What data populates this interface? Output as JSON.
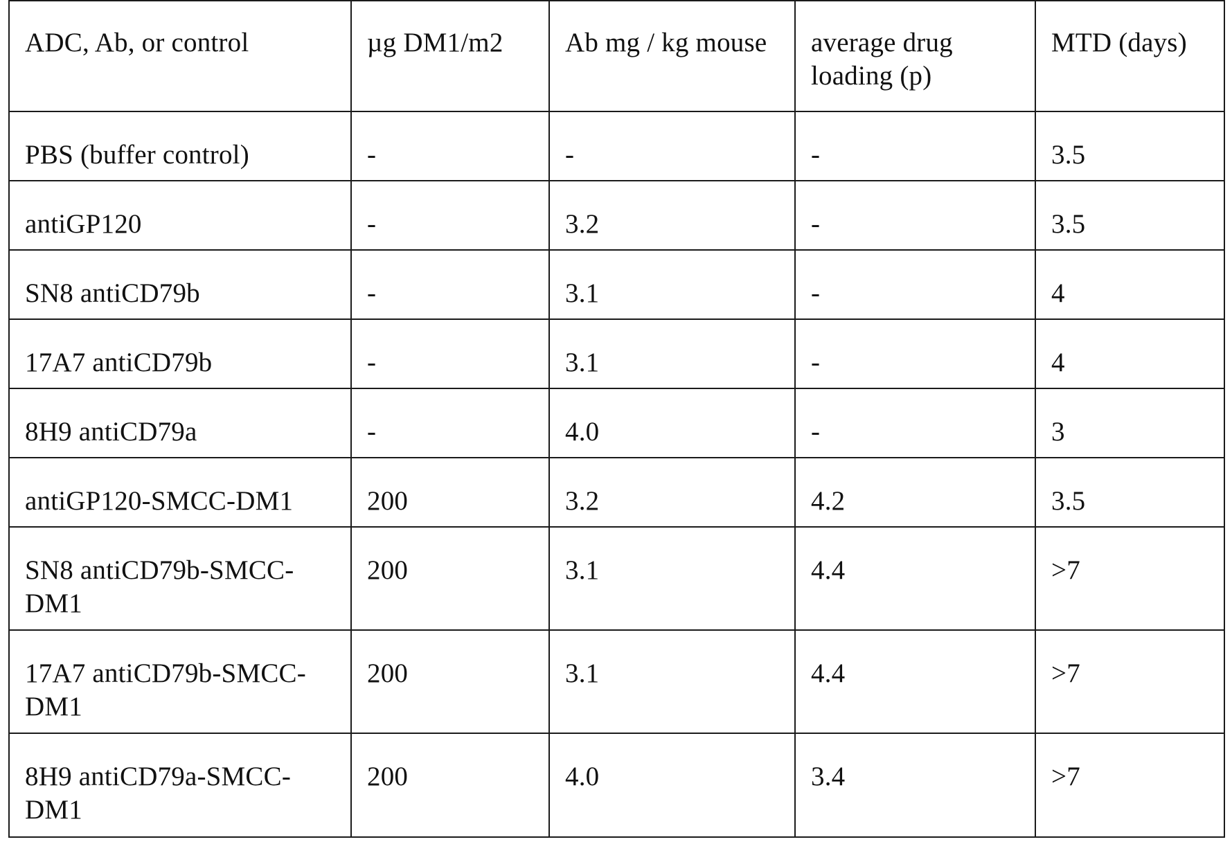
{
  "table": {
    "headers": [
      "ADC, Ab, or control",
      "µg DM1/m2",
      "Ab mg / kg mouse",
      "average drug loading (p)",
      "MTD (days)"
    ],
    "rows": [
      [
        "PBS (buffer control)",
        "-",
        "-",
        "-",
        "3.5"
      ],
      [
        "antiGP120",
        "-",
        "3.2",
        "-",
        "3.5"
      ],
      [
        "SN8 antiCD79b",
        "-",
        "3.1",
        "-",
        "4"
      ],
      [
        "17A7 antiCD79b",
        "-",
        "3.1",
        "-",
        "4"
      ],
      [
        "8H9 antiCD79a",
        "-",
        "4.0",
        "-",
        "3"
      ],
      [
        "antiGP120-SMCC-DM1",
        "200",
        "3.2",
        "4.2",
        "3.5"
      ],
      [
        "SN8 antiCD79b-SMCC-DM1",
        "200",
        "3.1",
        "4.4",
        ">7"
      ],
      [
        "17A7 antiCD79b-SMCC-DM1",
        "200",
        "3.1",
        "4.4",
        ">7"
      ],
      [
        "8H9 antiCD79a-SMCC-DM1",
        "200",
        "4.0",
        "3.4",
        ">7"
      ]
    ]
  }
}
